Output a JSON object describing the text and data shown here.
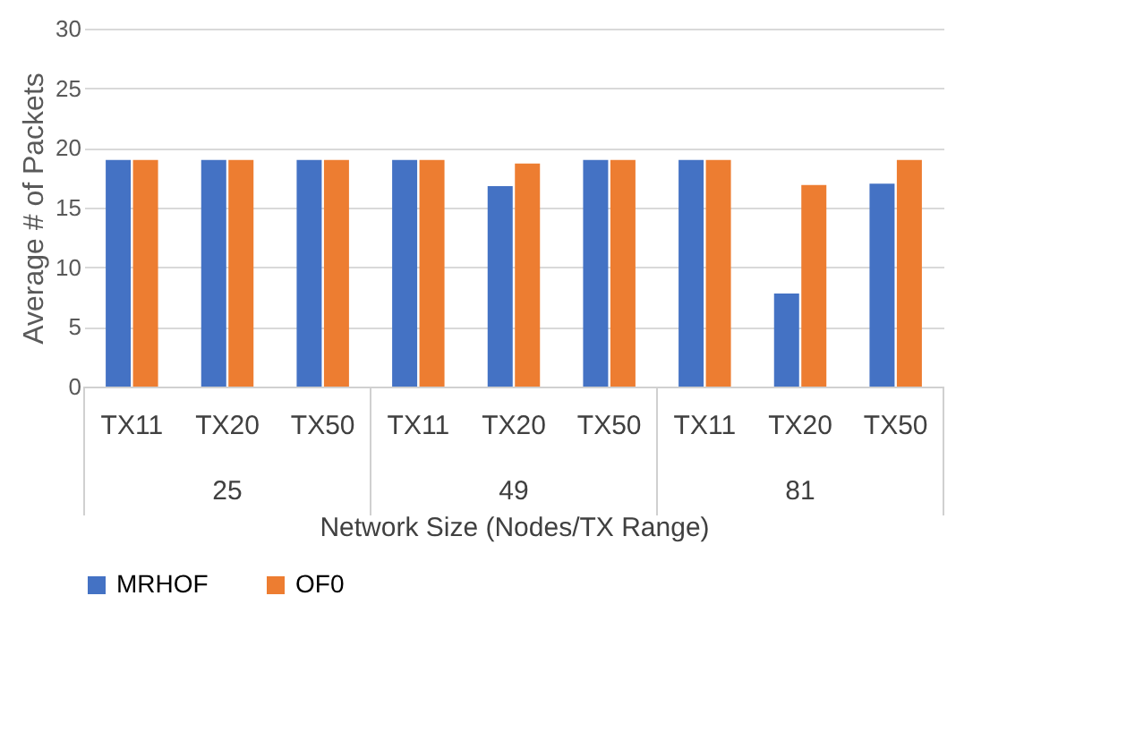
{
  "chart_data": {
    "type": "bar",
    "categories": [
      "TX11",
      "TX20",
      "TX50",
      "TX11",
      "TX20",
      "TX50",
      "TX11",
      "TX20",
      "TX50"
    ],
    "annotations": [
      "25",
      "49",
      "81"
    ],
    "series": [
      {
        "name": "MRHOF",
        "color": "#4472c4",
        "values": [
          19,
          19,
          19,
          19,
          16.8,
          19,
          19,
          7.8,
          17
        ]
      },
      {
        "name": "OF0",
        "color": "#ed7d31",
        "values": [
          19,
          19,
          19,
          19,
          18.7,
          19,
          19,
          16.9,
          19
        ]
      }
    ],
    "xlabel": "Network Size (Nodes/TX Range)",
    "ylabel": "Average # of Packets",
    "ylim": [
      0,
      30
    ],
    "yticks": [
      0,
      5,
      10,
      15,
      20,
      25,
      30
    ],
    "grid": "y",
    "legend": "bottom"
  }
}
